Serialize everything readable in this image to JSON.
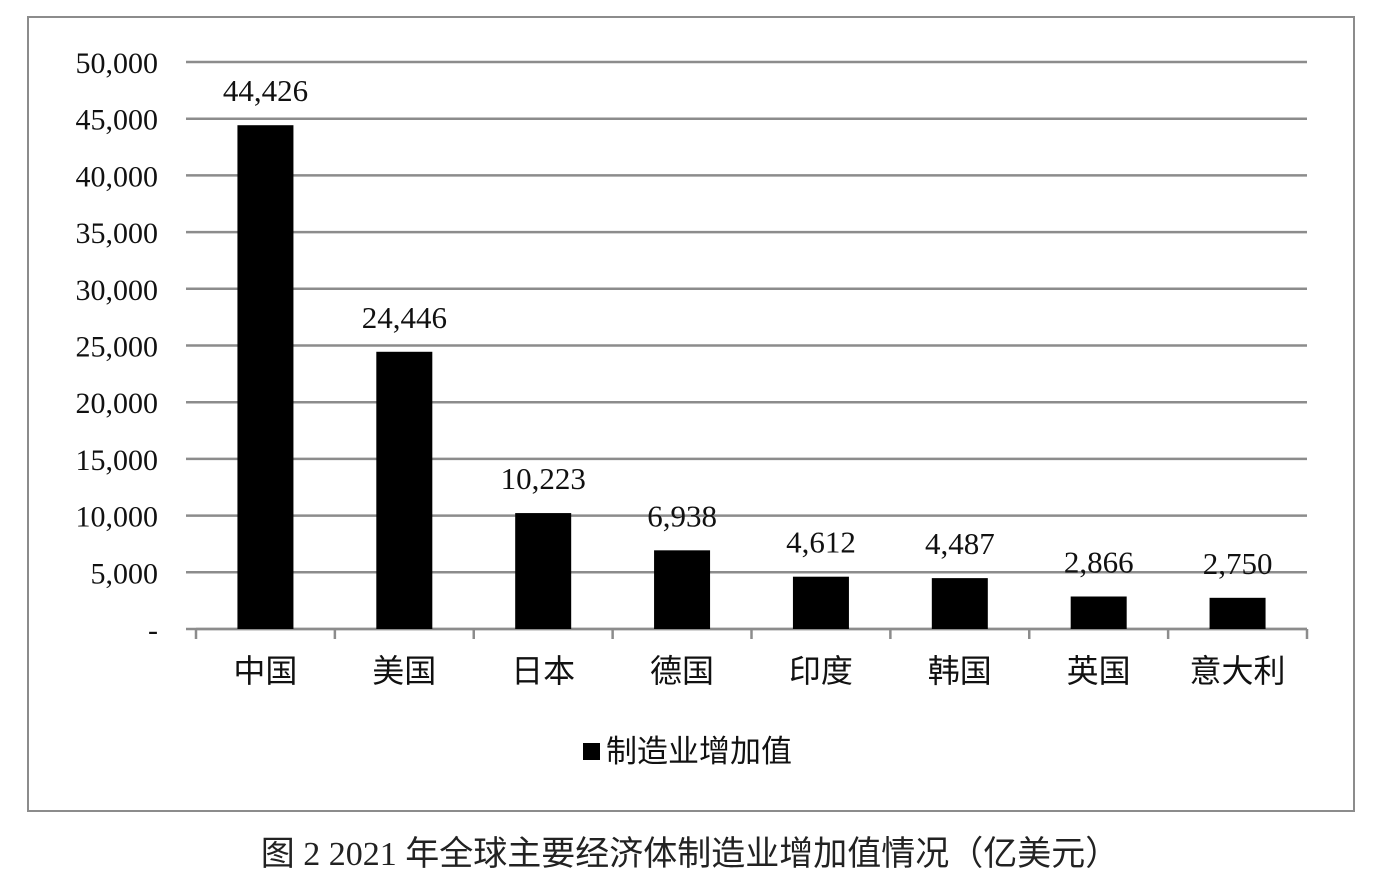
{
  "caption": "图 2 2021 年全球主要经济体制造业增加值情况（亿美元）",
  "chart_data": {
    "type": "bar",
    "categories": [
      "中国",
      "美国",
      "日本",
      "德国",
      "印度",
      "韩国",
      "英国",
      "意大利"
    ],
    "series": [
      {
        "name": "制造业增加值",
        "values": [
          44426,
          24446,
          10223,
          6938,
          4612,
          4487,
          2866,
          2750
        ]
      }
    ],
    "data_labels": [
      "44,426",
      "24,446",
      "10,223",
      "6,938",
      "4,612",
      "4,487",
      "2,866",
      "2,750"
    ],
    "y_ticks": [
      0,
      5000,
      10000,
      15000,
      20000,
      25000,
      30000,
      35000,
      40000,
      45000,
      50000
    ],
    "y_tick_labels": [
      "-",
      "5,000",
      "10,000",
      "15,000",
      "20,000",
      "25,000",
      "30,000",
      "35,000",
      "40,000",
      "45,000",
      "50,000"
    ],
    "ylim": [
      0,
      50000
    ],
    "grid": true,
    "legend": "bottom",
    "colors": {
      "bar": "#000000",
      "grid": "#8c8c8c",
      "axis": "#8c8c8c"
    }
  }
}
